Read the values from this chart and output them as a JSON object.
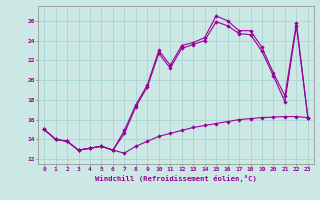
{
  "xlabel": "Windchill (Refroidissement éolien,°C)",
  "background_color": "#cce8e4",
  "grid_color": "#aad8d4",
  "line_color": "#990099",
  "xlim": [
    -0.5,
    23.5
  ],
  "ylim": [
    11.5,
    27.5
  ],
  "xticks": [
    0,
    1,
    2,
    3,
    4,
    5,
    6,
    7,
    8,
    9,
    10,
    11,
    12,
    13,
    14,
    15,
    16,
    17,
    18,
    19,
    20,
    21,
    22,
    23
  ],
  "yticks": [
    12,
    14,
    16,
    18,
    20,
    22,
    24,
    26
  ],
  "line1_x": [
    0,
    1,
    2,
    3,
    4,
    5,
    6,
    7,
    8,
    9,
    10,
    11,
    12,
    13,
    14,
    15,
    16,
    17,
    18,
    19,
    20,
    21,
    22,
    23
  ],
  "line1_y": [
    15.0,
    14.0,
    13.8,
    12.9,
    13.1,
    13.3,
    12.9,
    12.6,
    13.3,
    13.8,
    14.3,
    14.6,
    14.9,
    15.2,
    15.4,
    15.6,
    15.8,
    16.0,
    16.1,
    16.2,
    16.25,
    16.3,
    16.3,
    16.2
  ],
  "line2_x": [
    0,
    1,
    2,
    3,
    4,
    5,
    6,
    7,
    8,
    9,
    10,
    11,
    12,
    13,
    14,
    15,
    16,
    17,
    18,
    19,
    20,
    21,
    22,
    23
  ],
  "line2_y": [
    15.0,
    14.0,
    13.8,
    12.9,
    13.1,
    13.3,
    12.9,
    14.9,
    17.5,
    19.5,
    23.0,
    21.5,
    23.5,
    23.8,
    24.3,
    26.5,
    26.0,
    25.0,
    25.0,
    23.3,
    20.7,
    18.4,
    25.8,
    16.2
  ],
  "line3_x": [
    0,
    1,
    2,
    3,
    4,
    5,
    6,
    7,
    8,
    9,
    10,
    11,
    12,
    13,
    14,
    15,
    16,
    17,
    18,
    19,
    20,
    21,
    22,
    23
  ],
  "line3_y": [
    15.0,
    14.0,
    13.8,
    12.9,
    13.1,
    13.3,
    12.9,
    14.6,
    17.3,
    19.3,
    22.7,
    21.2,
    23.2,
    23.6,
    24.0,
    25.9,
    25.5,
    24.7,
    24.6,
    22.9,
    20.4,
    17.8,
    25.5,
    16.2
  ]
}
